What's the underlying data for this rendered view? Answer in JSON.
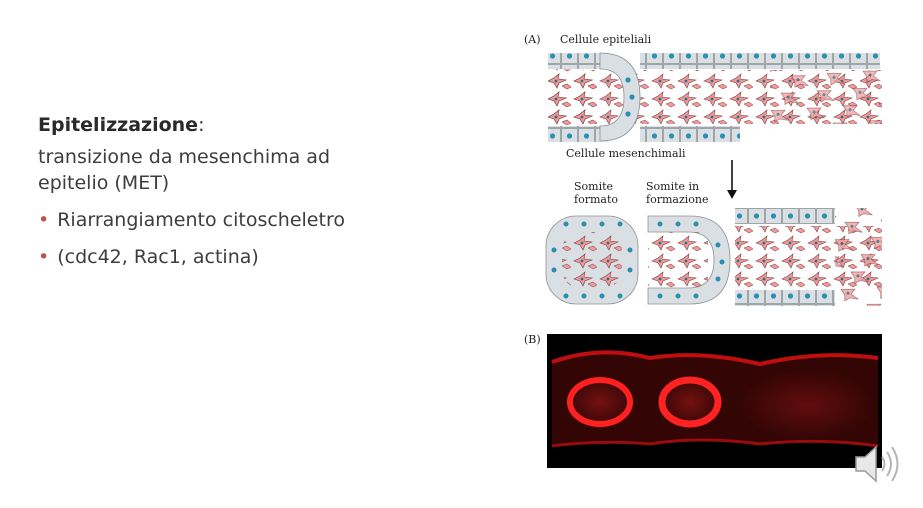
{
  "slide": {
    "title_bold": "Epitelizzazione",
    "title_suffix": ":",
    "line1": " transizione da mesenchima ad",
    "line2": "epitelio (MET)",
    "bullets": [
      "Riarrangiamento citoscheletro",
      "(cdc42, Rac1, actina)"
    ]
  },
  "figure": {
    "panel_a": "(A)",
    "panel_b": "(B)",
    "label_epithelial": "Cellule epiteliali",
    "label_mesenchymal": "Cellule mesenchimali",
    "label_somite_formed_1": "Somite",
    "label_somite_formed_2": "formato",
    "label_somite_forming_1": "Somite in",
    "label_somite_forming_2": "formazione"
  },
  "icons": {
    "speaker": "speaker-icon"
  },
  "colors": {
    "bullet": "#c0504d",
    "stain": "#e0202a",
    "nucleus": "#2a8fb0"
  }
}
